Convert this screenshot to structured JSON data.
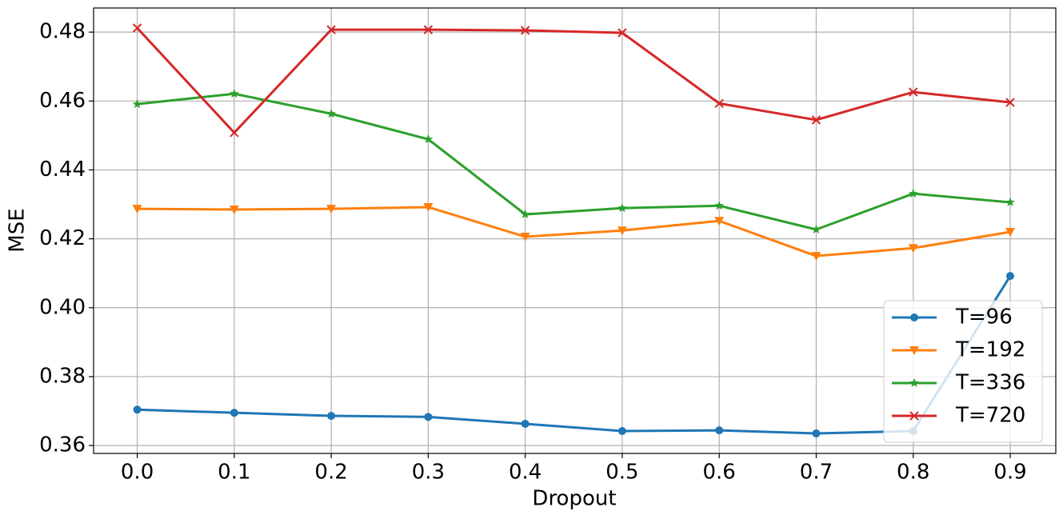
{
  "chart_data": {
    "type": "line",
    "x_label": "Dropout",
    "y_label": "MSE",
    "x": [
      0.0,
      0.1,
      0.2,
      0.3,
      0.4,
      0.5,
      0.6,
      0.7,
      0.8,
      0.9
    ],
    "series": [
      {
        "name": "T=96",
        "color": "#1f77b4",
        "marker": "circle",
        "values": [
          0.3704,
          0.3695,
          0.3686,
          0.3683,
          0.3663,
          0.3642,
          0.3644,
          0.3635,
          0.3642,
          0.4092
        ]
      },
      {
        "name": "T=192",
        "color": "#ff7f0e",
        "marker": "triangle-down",
        "values": [
          0.4287,
          0.4285,
          0.4287,
          0.4292,
          0.4206,
          0.4224,
          0.4252,
          0.415,
          0.4173,
          0.422
        ]
      },
      {
        "name": "T=336",
        "color": "#2ca02c",
        "marker": "star",
        "values": [
          0.4591,
          0.4621,
          0.4563,
          0.4489,
          0.4271,
          0.4289,
          0.4296,
          0.4227,
          0.4331,
          0.4306
        ]
      },
      {
        "name": "T=720",
        "color": "#d62728",
        "marker": "x",
        "values": [
          0.4812,
          0.4508,
          0.4807,
          0.4807,
          0.4805,
          0.4798,
          0.4593,
          0.4545,
          0.4626,
          0.4596
        ]
      }
    ],
    "xlim": [
      -0.045,
      0.947
    ],
    "ylim": [
      0.3577,
      0.487
    ],
    "xticks": [
      {
        "value": 0.0,
        "label": "0.0"
      },
      0.1,
      0.2,
      0.3,
      0.4,
      0.5,
      0.6,
      0.7,
      0.8,
      0.9
    ],
    "yticks": [
      0.36,
      0.38,
      {
        "value": 0.4,
        "label": "0.40"
      },
      0.42,
      0.44,
      0.46,
      0.48
    ],
    "grid": true,
    "legend_position": "lower right"
  }
}
